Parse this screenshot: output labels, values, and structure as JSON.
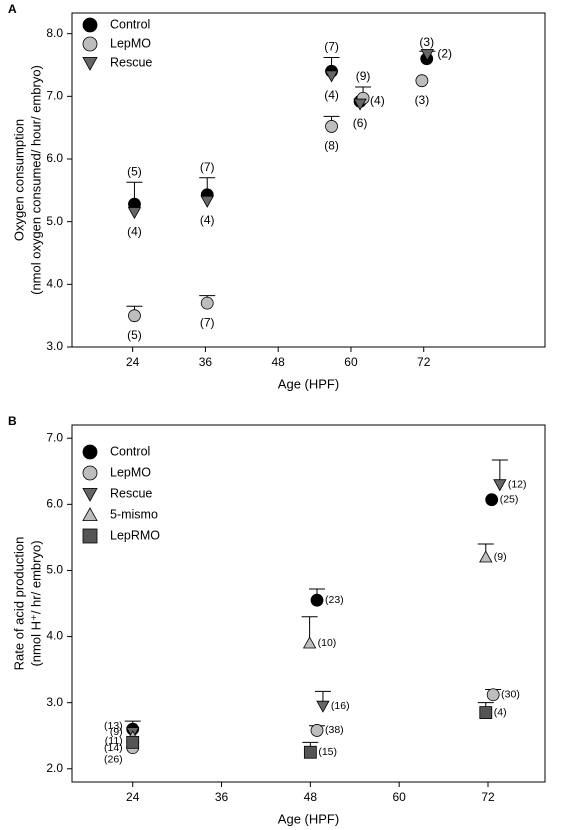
{
  "chart_data": [
    {
      "type": "scatter",
      "panel": "A",
      "xlabel": "Age (HPF)",
      "ylabel": [
        "Oxygen consumption",
        "(nmol oxygen consumed/ hour/ embryo)"
      ],
      "xlim": [
        14,
        92
      ],
      "ylim": [
        3.0,
        8.33
      ],
      "xticks": [
        24,
        36,
        48,
        60,
        72
      ],
      "yticks": [
        {
          "value": 3,
          "label": "3.0"
        },
        {
          "value": 4,
          "label": "4.0"
        },
        {
          "value": 5,
          "label": "5.0"
        },
        {
          "value": 6,
          "label": "6.0"
        },
        {
          "value": 7,
          "label": "7.0"
        },
        {
          "value": 8,
          "label": "8.0"
        }
      ],
      "series": [
        {
          "name": "Control",
          "color": "#000000",
          "marker": "circle",
          "x": [
            24.3,
            36.3,
            56.8,
            61.5,
            72.5
          ],
          "values": [
            5.28,
            5.43,
            7.4,
            6.92,
            7.6
          ],
          "errors": [
            0.35,
            0.27,
            0.22,
            null,
            null
          ],
          "n_labels": [
            "(5)",
            "(7)",
            "(7)",
            "(4)",
            "(3)"
          ]
        },
        {
          "name": "LepMO",
          "color": "#bdbdbd",
          "marker": "circle",
          "x": [
            24.3,
            36.3,
            56.8,
            62,
            71.7
          ],
          "values": [
            3.5,
            3.7,
            6.52,
            6.97,
            7.25
          ],
          "errors": [
            0.15,
            0.12,
            0.16,
            0.18,
            null
          ],
          "n_labels": [
            "(5)",
            "(7)",
            "(8)",
            "(9)",
            "(3)"
          ]
        },
        {
          "name": "Rescue",
          "color": "#666666",
          "marker": "down-triangle",
          "x": [
            24.3,
            36.3,
            56.8,
            61.5,
            72.6
          ],
          "values": [
            5.15,
            5.33,
            7.33,
            6.88,
            7.67
          ],
          "errors": [
            null,
            null,
            null,
            null,
            0.05
          ],
          "n_labels": [
            "(4)",
            "(4)",
            "(4)",
            "(6)",
            "(2)"
          ]
        }
      ]
    },
    {
      "type": "scatter",
      "panel": "B",
      "xlabel": "Age (HPF)",
      "ylabel": [
        "Rate of acid production",
        "(nmol H⁺/ hr/ embryo)"
      ],
      "xlim": [
        15.8,
        79.7
      ],
      "ylim": [
        1.8,
        7.2
      ],
      "xticks": [
        24,
        36,
        48,
        60,
        72
      ],
      "yticks": [
        {
          "value": 2,
          "label": "2.0"
        },
        {
          "value": 3,
          "label": "3.0"
        },
        {
          "value": 4,
          "label": "4.0"
        },
        {
          "value": 5,
          "label": "5.0"
        },
        {
          "value": 6,
          "label": "6.0"
        },
        {
          "value": 7,
          "label": "7.0"
        }
      ],
      "series": [
        {
          "name": "Control",
          "color": "#000000",
          "marker": "circle",
          "x": [
            24,
            48.9,
            72.5
          ],
          "values": [
            2.6,
            4.55,
            6.07
          ],
          "errors": [
            0.12,
            0.17,
            null
          ],
          "n_labels": [
            "(13)",
            "(23)",
            "(25)"
          ]
        },
        {
          "name": "LepMO",
          "color": "#bdbdbd",
          "marker": "circle",
          "x": [
            24,
            48.9,
            72.7
          ],
          "values": [
            2.32,
            2.58,
            3.12
          ],
          "errors": [
            null,
            0.07,
            0.08
          ],
          "n_labels": [
            "(26)",
            "(38)",
            "(30)"
          ]
        },
        {
          "name": "Rescue",
          "color": "#666666",
          "marker": "down-triangle",
          "x": [
            24,
            49.7,
            73.6
          ],
          "values": [
            2.55,
            2.95,
            6.3
          ],
          "errors": [
            null,
            0.22,
            0.37
          ],
          "n_labels": [
            "(9)",
            "(16)",
            "(12)"
          ]
        },
        {
          "name": "5-mismo",
          "color": "#bdbdbd",
          "marker": "up-triangle",
          "x": [
            24,
            47.9,
            71.7
          ],
          "values": [
            2.48,
            3.9,
            5.2
          ],
          "errors": [
            null,
            0.4,
            0.2
          ],
          "n_labels": [
            "(11)",
            "(10)",
            "(9)"
          ]
        },
        {
          "name": "LepRMO",
          "color": "#555555",
          "marker": "square",
          "x": [
            24,
            48,
            71.7
          ],
          "values": [
            2.4,
            2.25,
            2.85
          ],
          "errors": [
            null,
            0.15,
            0.15
          ],
          "n_labels": [
            "(14)",
            "(15)",
            "(4)"
          ]
        }
      ]
    }
  ]
}
